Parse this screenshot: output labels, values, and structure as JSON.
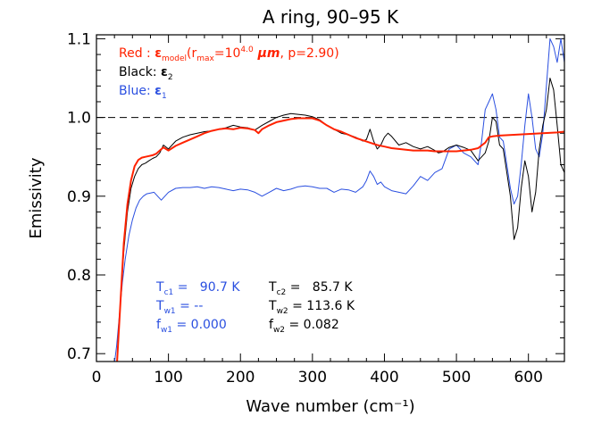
{
  "chart_data": {
    "type": "line",
    "title": "A ring, 90–95 K",
    "xlabel": "Wave number (cm⁻¹)",
    "ylabel": "Emissivity",
    "xlim": [
      0,
      650
    ],
    "ylim": [
      0.69,
      1.105
    ],
    "xticks": [
      0,
      100,
      200,
      300,
      400,
      500,
      600
    ],
    "yticks": [
      0.7,
      0.8,
      0.9,
      1.0,
      1.1
    ],
    "xtick_labels": [
      "0",
      "100",
      "200",
      "300",
      "400",
      "500",
      "600"
    ],
    "ytick_labels": [
      "0.7",
      "0.8",
      "0.9",
      "1.0",
      "1.1"
    ],
    "grid": false,
    "reference_line": {
      "y": 1.0,
      "style": "dashed"
    },
    "legend": {
      "placement": "top-left",
      "entries": [
        {
          "prefix": "Red : ",
          "color": "#ff2200",
          "symbol": "ε",
          "sub": "model",
          "open": "(r",
          "rsub": "max",
          "eq": "=10",
          "sup": "4.0",
          "unit": " μm",
          "tail": ", p=2.90)"
        },
        {
          "prefix": "Black: ",
          "color": "#000000",
          "symbol": "ε",
          "sub": "2"
        },
        {
          "prefix": "Blue: ",
          "color": "#2a4fe0",
          "symbol": "ε",
          "sub": "1"
        }
      ]
    },
    "annotations": {
      "left_color": "#2a4fe0",
      "right_color": "#000000",
      "left": [
        {
          "label": "T",
          "sub": "c1",
          "value": " =   90.7 K"
        },
        {
          "label": "T",
          "sub": "w1",
          "value": " = --"
        },
        {
          "label": "f",
          "sub": "w1",
          "value": " = 0.000"
        }
      ],
      "right": [
        {
          "label": "T",
          "sub": "c2",
          "value": " =   85.7 K"
        },
        {
          "label": "T",
          "sub": "w2",
          "value": " = 113.6 K"
        },
        {
          "label": "f",
          "sub": "w2",
          "value": " = 0.082"
        }
      ]
    },
    "series": [
      {
        "color": "#ff2200",
        "width": 2,
        "x": [
          28,
          33,
          38,
          43,
          48,
          53,
          58,
          63,
          68,
          73,
          78,
          83,
          88,
          93,
          100,
          110,
          120,
          130,
          140,
          150,
          160,
          170,
          180,
          190,
          200,
          210,
          220,
          225,
          230,
          240,
          250,
          260,
          270,
          280,
          290,
          300,
          310,
          320,
          330,
          340,
          350,
          360,
          370,
          380,
          390,
          400,
          410,
          420,
          430,
          440,
          450,
          460,
          470,
          480,
          490,
          500,
          510,
          520,
          530,
          540,
          545,
          550,
          560,
          580,
          600,
          620,
          640,
          650
        ],
        "y": [
          0.68,
          0.76,
          0.84,
          0.89,
          0.92,
          0.938,
          0.946,
          0.949,
          0.95,
          0.951,
          0.952,
          0.954,
          0.958,
          0.962,
          0.958,
          0.964,
          0.968,
          0.972,
          0.976,
          0.98,
          0.983,
          0.985,
          0.986,
          0.985,
          0.987,
          0.986,
          0.984,
          0.98,
          0.985,
          0.99,
          0.994,
          0.996,
          0.998,
          0.999,
          0.999,
          0.999,
          0.996,
          0.99,
          0.985,
          0.982,
          0.978,
          0.974,
          0.971,
          0.968,
          0.965,
          0.963,
          0.961,
          0.96,
          0.959,
          0.958,
          0.958,
          0.958,
          0.957,
          0.957,
          0.957,
          0.957,
          0.958,
          0.959,
          0.961,
          0.968,
          0.975,
          0.976,
          0.977,
          0.978,
          0.979,
          0.98,
          0.981,
          0.982
        ]
      },
      {
        "color": "#000000",
        "width": 1,
        "x": [
          28,
          33,
          38,
          43,
          48,
          53,
          58,
          63,
          68,
          73,
          78,
          83,
          88,
          93,
          100,
          110,
          120,
          130,
          140,
          150,
          160,
          170,
          180,
          190,
          200,
          210,
          220,
          230,
          240,
          250,
          260,
          270,
          280,
          290,
          300,
          310,
          320,
          330,
          340,
          350,
          360,
          370,
          375,
          380,
          385,
          390,
          395,
          400,
          405,
          410,
          420,
          430,
          440,
          450,
          460,
          470,
          475,
          480,
          490,
          500,
          510,
          520,
          530,
          540,
          545,
          550,
          555,
          560,
          565,
          570,
          575,
          580,
          585,
          590,
          595,
          600,
          605,
          610,
          615,
          620,
          625,
          630,
          635,
          640,
          645,
          650
        ],
        "y": [
          0.68,
          0.76,
          0.83,
          0.88,
          0.91,
          0.925,
          0.935,
          0.94,
          0.942,
          0.945,
          0.948,
          0.95,
          0.955,
          0.965,
          0.96,
          0.97,
          0.975,
          0.978,
          0.98,
          0.982,
          0.983,
          0.985,
          0.987,
          0.99,
          0.988,
          0.987,
          0.984,
          0.99,
          0.995,
          1.0,
          1.003,
          1.005,
          1.004,
          1.003,
          1.001,
          0.997,
          0.99,
          0.985,
          0.98,
          0.978,
          0.975,
          0.97,
          0.972,
          0.985,
          0.97,
          0.96,
          0.965,
          0.975,
          0.98,
          0.976,
          0.965,
          0.968,
          0.963,
          0.96,
          0.963,
          0.958,
          0.955,
          0.956,
          0.962,
          0.965,
          0.962,
          0.958,
          0.945,
          0.955,
          0.97,
          1.0,
          0.995,
          0.965,
          0.96,
          0.93,
          0.9,
          0.845,
          0.86,
          0.91,
          0.945,
          0.925,
          0.88,
          0.905,
          0.96,
          0.99,
          1.01,
          1.05,
          1.035,
          0.99,
          0.94,
          0.93
        ]
      },
      {
        "color": "#2a4fe0",
        "width": 1,
        "x": [
          24,
          28,
          32,
          36,
          40,
          45,
          50,
          55,
          60,
          65,
          70,
          75,
          80,
          85,
          90,
          100,
          110,
          120,
          130,
          140,
          150,
          160,
          170,
          180,
          190,
          200,
          210,
          220,
          230,
          240,
          250,
          260,
          270,
          280,
          290,
          300,
          310,
          320,
          330,
          340,
          350,
          360,
          370,
          375,
          380,
          385,
          390,
          395,
          400,
          410,
          420,
          430,
          440,
          450,
          460,
          470,
          480,
          490,
          500,
          510,
          520,
          530,
          535,
          540,
          545,
          550,
          555,
          560,
          565,
          570,
          575,
          580,
          585,
          590,
          595,
          600,
          605,
          610,
          615,
          620,
          625,
          630,
          635,
          640,
          645,
          650
        ],
        "y": [
          0.68,
          0.71,
          0.75,
          0.79,
          0.82,
          0.85,
          0.87,
          0.885,
          0.895,
          0.9,
          0.903,
          0.904,
          0.905,
          0.9,
          0.895,
          0.905,
          0.91,
          0.911,
          0.911,
          0.912,
          0.91,
          0.912,
          0.911,
          0.909,
          0.907,
          0.909,
          0.908,
          0.905,
          0.9,
          0.905,
          0.91,
          0.907,
          0.909,
          0.912,
          0.913,
          0.912,
          0.91,
          0.91,
          0.905,
          0.909,
          0.908,
          0.905,
          0.912,
          0.92,
          0.932,
          0.925,
          0.915,
          0.918,
          0.912,
          0.907,
          0.905,
          0.903,
          0.913,
          0.925,
          0.92,
          0.93,
          0.935,
          0.96,
          0.965,
          0.955,
          0.95,
          0.94,
          0.97,
          1.01,
          1.02,
          1.03,
          1.01,
          0.975,
          0.97,
          0.94,
          0.91,
          0.89,
          0.9,
          0.94,
          0.99,
          1.03,
          1.0,
          0.96,
          0.95,
          0.98,
          1.04,
          1.1,
          1.09,
          1.07,
          1.1,
          1.07
        ]
      }
    ]
  }
}
